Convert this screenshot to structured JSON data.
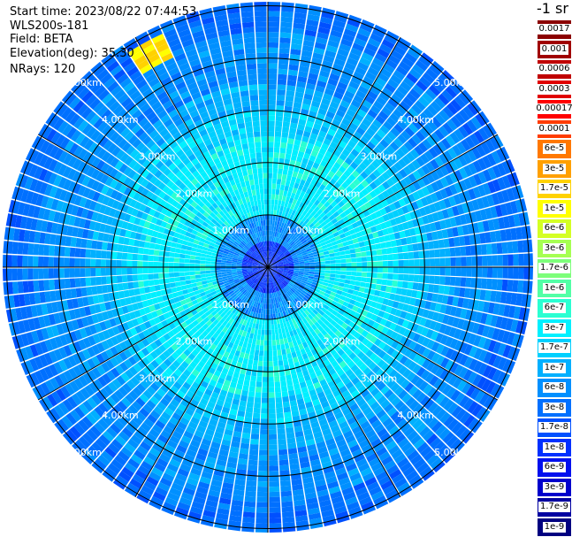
{
  "header": {
    "start_time": "Start time: 2023/08/22 07:44:53",
    "instrument": "WLS200s-181",
    "field": "Field: BETA",
    "elevation": "Elevation(deg): 35.30",
    "nrays": "NRays: 120"
  },
  "colorbar": {
    "unit": "-1 sr",
    "levels": [
      {
        "label": "0.0017",
        "color": "#8b0000"
      },
      {
        "label": "0.001",
        "color": "#a00000"
      },
      {
        "label": "0.0006",
        "color": "#c00000"
      },
      {
        "label": "0.0003",
        "color": "#e00000"
      },
      {
        "label": "0.00017",
        "color": "#ff0000"
      },
      {
        "label": "0.0001",
        "color": "#ff3c00"
      },
      {
        "label": "6e-5",
        "color": "#ff7800"
      },
      {
        "label": "3e-5",
        "color": "#ffa000"
      },
      {
        "label": "1.7e-5",
        "color": "#ffd200"
      },
      {
        "label": "1e-5",
        "color": "#ffff00"
      },
      {
        "label": "6e-6",
        "color": "#d4ff24"
      },
      {
        "label": "3e-6",
        "color": "#a6ff52"
      },
      {
        "label": "1.7e-6",
        "color": "#7dff7a"
      },
      {
        "label": "1e-6",
        "color": "#52ffa6"
      },
      {
        "label": "6e-7",
        "color": "#2affd2"
      },
      {
        "label": "3e-7",
        "color": "#00f0ff"
      },
      {
        "label": "1.7e-7",
        "color": "#00d0ff"
      },
      {
        "label": "1e-7",
        "color": "#00b0ff"
      },
      {
        "label": "6e-8",
        "color": "#0090ff"
      },
      {
        "label": "3e-8",
        "color": "#0070ff"
      },
      {
        "label": "1.7e-8",
        "color": "#0050ff"
      },
      {
        "label": "1e-8",
        "color": "#0030ff"
      },
      {
        "label": "6e-9",
        "color": "#0010ee"
      },
      {
        "label": "3e-9",
        "color": "#0000cc"
      },
      {
        "label": "1.7e-9",
        "color": "#0000a0"
      },
      {
        "label": "1e-9",
        "color": "#000080"
      }
    ]
  },
  "chart_data": {
    "type": "heatmap",
    "projection": "polar (PPI)",
    "field": "BETA",
    "elevation_deg": 35.3,
    "nrays": 120,
    "max_range_km": 5.0,
    "range_rings_km": [
      1.0,
      2.0,
      3.0,
      4.0,
      5.0
    ],
    "ring_labels": [
      "1.00km",
      "2.00km",
      "3.00km",
      "4.00km",
      "5.00km"
    ],
    "spoke_angles_deg": [
      0,
      30,
      60,
      90,
      120,
      150,
      180,
      210,
      240,
      270,
      300,
      330
    ],
    "range_profile": [
      {
        "range_km": 0.0,
        "level": "1e-8"
      },
      {
        "range_km": 0.5,
        "level": "6e-8"
      },
      {
        "range_km": 1.0,
        "level": "3e-7"
      },
      {
        "range_km": 1.5,
        "level": "3e-7"
      },
      {
        "range_km": 2.0,
        "level": "3e-7"
      },
      {
        "range_km": 2.5,
        "level": "1.7e-7"
      },
      {
        "range_km": 3.0,
        "level": "1e-7"
      },
      {
        "range_km": 3.5,
        "level": "6e-8"
      },
      {
        "range_km": 4.0,
        "level": "6e-8"
      },
      {
        "range_km": 4.5,
        "level": "3e-8"
      },
      {
        "range_km": 5.0,
        "level": "3e-8"
      }
    ],
    "hotspot": {
      "azimuth_deg": 330,
      "range_km": 4.6,
      "level": "1.7e-5"
    }
  }
}
